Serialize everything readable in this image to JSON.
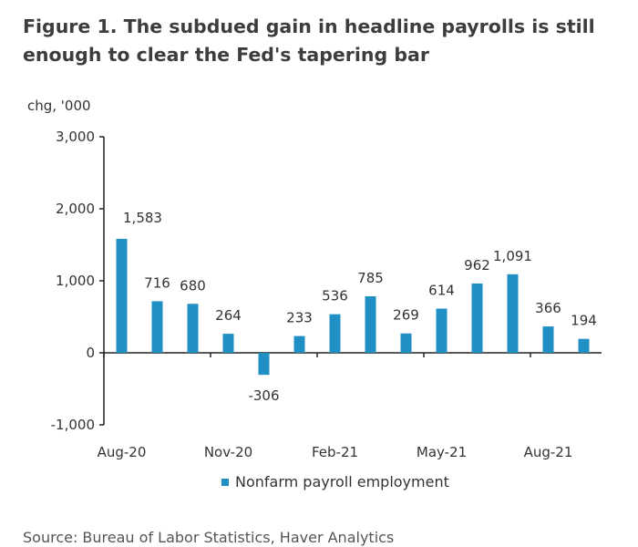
{
  "title_lines": [
    "Figure 1. The subdued gain in headline payrolls is still",
    "enough to clear the Fed's tapering bar"
  ],
  "source": "Source: Bureau of Labor Statistics, Haver Analytics",
  "colors": {
    "bar": "#1f8fc4",
    "axis": "#222222",
    "text": "#333333"
  },
  "chart_data": {
    "type": "bar",
    "title": "Figure 1. The subdued gain in headline payrolls is still enough to clear the Fed's tapering bar",
    "xlabel": "",
    "ylabel": "chg, '000",
    "ylim": [
      -1000,
      3000
    ],
    "y_ticks": [
      3000,
      2000,
      1000,
      0,
      -1000
    ],
    "y_tick_labels": [
      "3,000",
      "2,000",
      "1,000",
      "0",
      "-1,000"
    ],
    "categories": [
      "Aug-20",
      "Sep-20",
      "Oct-20",
      "Nov-20",
      "Dec-20",
      "Jan-21",
      "Feb-21",
      "Mar-21",
      "Apr-21",
      "May-21",
      "Jun-21",
      "Jul-21",
      "Aug-21",
      "Sep-21"
    ],
    "x_tick_labels": [
      {
        "category": "Aug-20",
        "label": "Aug-20"
      },
      {
        "category": "Nov-20",
        "label": "Nov-20"
      },
      {
        "category": "Feb-21",
        "label": "Feb-21"
      },
      {
        "category": "May-21",
        "label": "May-21"
      },
      {
        "category": "Aug-21",
        "label": "Aug-21"
      }
    ],
    "series": [
      {
        "name": "Nonfarm payroll employment",
        "values": [
          1583,
          716,
          680,
          264,
          -306,
          233,
          536,
          785,
          269,
          614,
          962,
          1091,
          366,
          194
        ],
        "labels": [
          "1,583",
          "716",
          "680",
          "264",
          "-306",
          "233",
          "536",
          "785",
          "269",
          "614",
          "962",
          "1,091",
          "366",
          "194"
        ]
      }
    ],
    "legend": "bottom-center",
    "grid": false
  }
}
